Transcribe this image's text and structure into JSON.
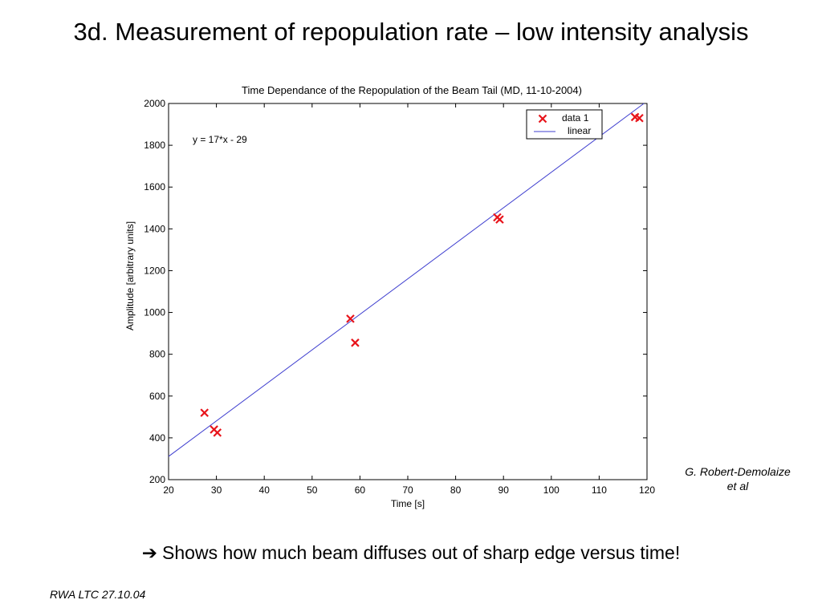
{
  "slide": {
    "title": "3d. Measurement of repopulation rate – low intensity analysis",
    "credit_line1": "G. Robert-Demolaize",
    "credit_line2": "et al",
    "bullet_arrow": "➔",
    "bullet_text": "Shows how much beam diffuses out of sharp edge versus time!",
    "footer": "RWA LTC 27.10.04"
  },
  "chart_data": {
    "type": "scatter",
    "title": "Time Dependance of the Repopulation of the Beam Tail (MD, 11-10-2004)",
    "xlabel": "Time [s]",
    "ylabel": "Amplitude [arbitrary units]",
    "xlim": [
      20,
      120
    ],
    "ylim": [
      200,
      2000
    ],
    "xticks": [
      20,
      30,
      40,
      50,
      60,
      70,
      80,
      90,
      100,
      110,
      120
    ],
    "yticks": [
      200,
      400,
      600,
      800,
      1000,
      1200,
      1400,
      1600,
      1800,
      2000
    ],
    "grid": true,
    "legend_position": "top-right",
    "annotation": "y = 17*x - 29",
    "series": [
      {
        "name": "data 1",
        "marker": "x",
        "color": "#e8141b",
        "x": [
          27.5,
          29.5,
          30.2,
          58.0,
          59.0,
          88.7,
          89.2,
          117.5,
          118.4
        ],
        "y": [
          520,
          440,
          425,
          970,
          855,
          1455,
          1445,
          1935,
          1930
        ]
      },
      {
        "name": "linear",
        "type": "line",
        "color": "#3f3fcf",
        "slope": 17,
        "intercept": -29
      }
    ]
  }
}
